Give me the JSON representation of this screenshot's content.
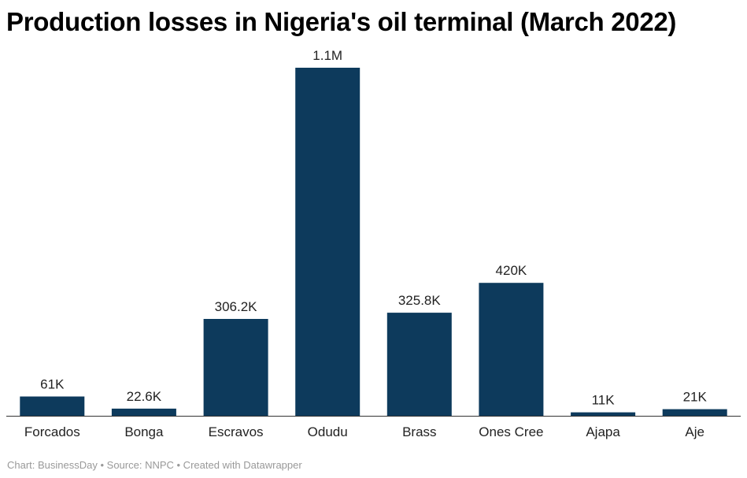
{
  "chart_data": {
    "type": "bar",
    "title": "Production losses in Nigeria's oil terminal (March 2022)",
    "categories": [
      "Forcados",
      "Bonga",
      "Escravos",
      "Odudu",
      "Brass",
      "Ones Cree",
      "Ajapa",
      "Aje"
    ],
    "values": [
      61000,
      22600,
      306200,
      1100000,
      325800,
      420000,
      11000,
      21000
    ],
    "value_labels": [
      "61K",
      "22.6K",
      "306.2K",
      "1.1M",
      "325.8K",
      "420K",
      "11K",
      "21K"
    ],
    "xlabel": "",
    "ylabel": "",
    "ylim": [
      0,
      1100000
    ],
    "grid": false,
    "legend": "none",
    "bar_color": "#0d3a5c",
    "baseline_color": "#333333"
  },
  "footer": {
    "text": "Chart: BusinessDay • Source: NNPC • Created with Datawrapper"
  }
}
